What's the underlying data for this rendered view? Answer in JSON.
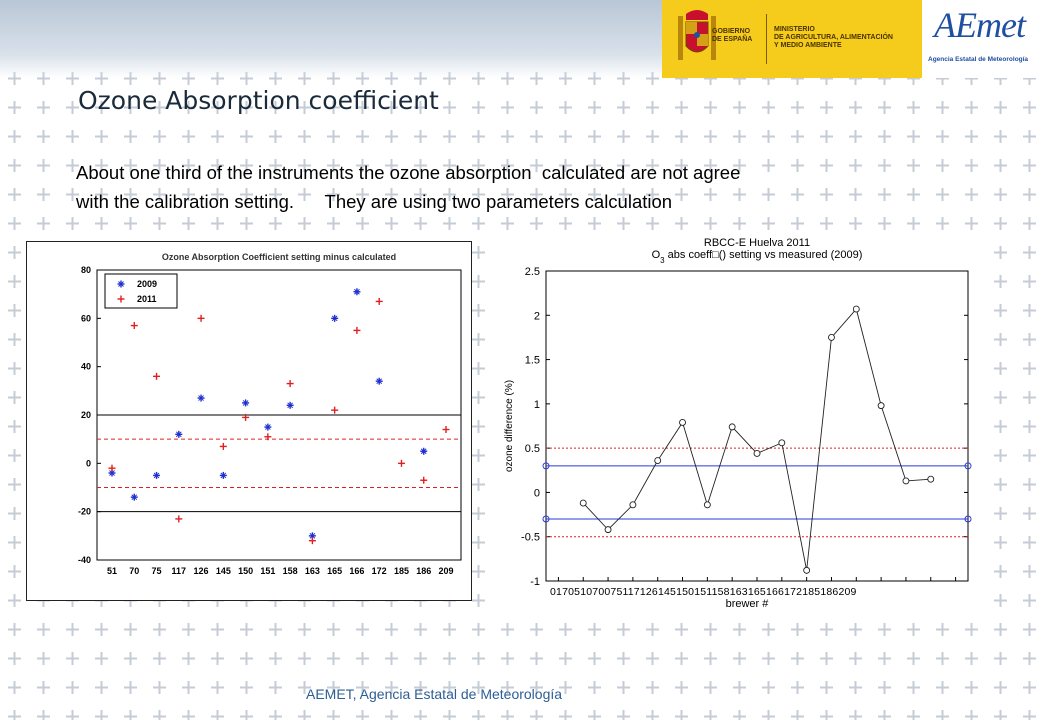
{
  "slide": {
    "title": "Ozone Absorption coefficient",
    "body_lines": [
      "About one third of the instruments the ozone absorption  calculated are not agree",
      "with the calibration setting.      They are using two parameters calculation"
    ],
    "footer": "AEMET, Agencia Estatal de Meteorología"
  },
  "logos": {
    "gobierno": [
      "GOBIERNO",
      "DE ESPAÑA"
    ],
    "ministerio": [
      "MINISTERIO",
      "DE AGRICULTURA, ALIMENTACIÓN",
      "Y MEDIO AMBIENTE"
    ],
    "aemet_word": "AEmet",
    "aemet_sub": "Agencia Estatal de Meteorología",
    "gov_color": "#f5cc1c",
    "aemet_color": "#1f4fa0"
  },
  "chart_data": [
    {
      "type": "scatter",
      "title": "Ozone Absorption Coefficient setting minus calculated",
      "categories": [
        "51",
        "70",
        "75",
        "117",
        "126",
        "145",
        "150",
        "151",
        "158",
        "163",
        "165",
        "166",
        "172",
        "185",
        "186",
        "209"
      ],
      "ylim": [
        -40,
        80
      ],
      "yticks": [
        -40,
        -20,
        0,
        20,
        40,
        60,
        80
      ],
      "legend_position": "top-left",
      "series": [
        {
          "name": "2009",
          "color": "#1f2fd0",
          "marker": "*",
          "values": [
            -4,
            -14,
            -5,
            12,
            27,
            -5,
            25,
            15,
            24,
            -30,
            60,
            71,
            34,
            null,
            5,
            null
          ]
        },
        {
          "name": "2011",
          "color": "#e02020",
          "marker": "+",
          "values": [
            -2,
            57,
            36,
            -23,
            60,
            7,
            19,
            11,
            33,
            -32,
            22,
            55,
            67,
            0,
            -7,
            14
          ]
        }
      ],
      "hlines": [
        {
          "y": 20,
          "color": "#000000",
          "style": "solid"
        },
        {
          "y": -20,
          "color": "#000000",
          "style": "solid"
        },
        {
          "y": 10,
          "color": "#e02020",
          "style": "dashed"
        },
        {
          "y": -10,
          "color": "#e02020",
          "style": "dashed"
        }
      ]
    },
    {
      "type": "line",
      "title": "RBCC-E Huelva 2011",
      "subtitle_pre": "O",
      "subtitle_sub": "3",
      "subtitle_post": " abs coeff□() setting vs measured (2009)",
      "xlabel": "brewer #",
      "ylabel": "ozone difference (%)",
      "xtick_labels": [
        "017",
        "051",
        "070",
        "075",
        "117",
        "126",
        "145",
        "150",
        "151",
        "158",
        "163",
        "165",
        "166",
        "172",
        "185",
        "186",
        "209"
      ],
      "x": [
        0,
        1,
        2,
        3,
        4,
        5,
        6,
        7,
        8,
        9,
        10,
        11,
        12,
        13,
        14,
        15,
        16
      ],
      "xlim": [
        -0.5,
        16.5
      ],
      "ylim": [
        -1,
        2.5
      ],
      "yticks": [
        -1,
        -0.5,
        0,
        0.5,
        1,
        1.5,
        2,
        2.5
      ],
      "ytick_labels": [
        "-1",
        "-0.5",
        "0",
        "0.5",
        "1",
        "1.5",
        "2",
        "2.5"
      ],
      "grid": false,
      "series": [
        {
          "color": "#222222",
          "marker": "o",
          "x": [
            1,
            2,
            3,
            4,
            5,
            6,
            7,
            8,
            9,
            10,
            11,
            12,
            13,
            14,
            15
          ],
          "values": [
            -0.12,
            -0.42,
            -0.14,
            0.36,
            0.79,
            -0.14,
            0.74,
            0.44,
            0.56,
            -0.88,
            1.75,
            2.07,
            0.98,
            0.13,
            0.15
          ]
        }
      ],
      "hlines": [
        {
          "y": 0.3,
          "color": "#2a3ad8",
          "style": "solid"
        },
        {
          "y": -0.3,
          "color": "#2a3ad8",
          "style": "solid"
        },
        {
          "y": 0.5,
          "color": "#e02020",
          "style": "dotted"
        },
        {
          "y": -0.5,
          "color": "#e02020",
          "style": "dotted"
        }
      ]
    }
  ]
}
